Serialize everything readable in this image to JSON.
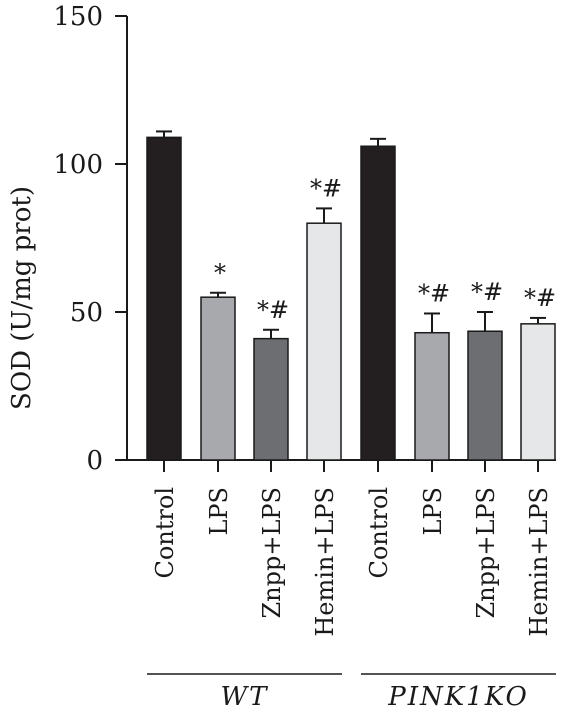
{
  "chart_data": {
    "type": "bar",
    "ylabel": "SOD (U/mg prot)",
    "ylim": [
      0,
      150
    ],
    "yticks": [
      "0",
      "50",
      "100",
      "150"
    ],
    "categories": [
      "Control",
      "LPS",
      "Znpp+LPS",
      "Hemin+LPS",
      "Control",
      "LPS",
      "Znpp+LPS",
      "Hemin+LPS"
    ],
    "values": [
      109,
      55,
      41,
      80,
      106,
      43,
      43.5,
      46
    ],
    "errors": [
      2,
      1.5,
      3,
      5,
      2.5,
      6.5,
      6.5,
      2
    ],
    "annotations": [
      "",
      "*",
      "*#",
      "*#",
      "",
      "*#",
      "*#",
      "*#"
    ],
    "bar_colors": [
      "#231f20",
      "#a7a9ac",
      "#6d6e71",
      "#e6e7e8",
      "#231f20",
      "#a7a9ac",
      "#6d6e71",
      "#e6e7e8"
    ],
    "groups": [
      {
        "label": "WT",
        "span": [
          0,
          3
        ]
      },
      {
        "label": "PINK1KO",
        "span": [
          4,
          7
        ]
      }
    ]
  }
}
